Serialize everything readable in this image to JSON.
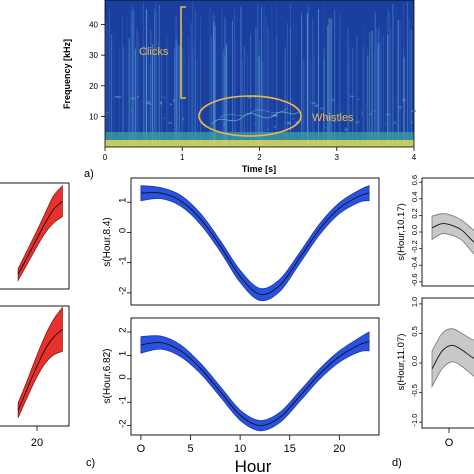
{
  "figure_labels": {
    "a": "a)",
    "c": "c)",
    "d": "d)"
  },
  "colors": {
    "spectro_bg": "#1b3f9e",
    "annotation": "#e8b84a",
    "ribbon_red": "#e8302c",
    "ribbon_blue": "#2a52e0",
    "ribbon_grey": "#c8c8c8",
    "curve": "#111111"
  },
  "spectrogram": {
    "xlabel": "Time [s]",
    "ylabel": "Frequency [kHz]",
    "xticks": [
      "0",
      "1",
      "2",
      "3",
      "4"
    ],
    "yticks": [
      "10",
      "20",
      "30",
      "40"
    ],
    "annotations": {
      "clicks": "Clicks",
      "whistles": "Whistles"
    }
  },
  "panel_c": {
    "xlabel": "Hour",
    "top_ylabel": "s(Hour,8.4)",
    "bottom_ylabel": "s(Hour,6.82)",
    "xticks": [
      "O",
      "5",
      "10",
      "15",
      "20"
    ],
    "top_yticks": [
      "1",
      "0",
      "-1",
      "-2"
    ],
    "bottom_yticks": [
      "2",
      "1",
      "0",
      "-1",
      "-2"
    ]
  },
  "panel_d": {
    "top_ylabel": "s(Hour,10.17)",
    "bottom_ylabel": "s(Hour,11.07)",
    "top_yticks": [
      "0.6",
      "0.4",
      "0.2",
      "0.0",
      "-0.2",
      "-0.4",
      "-0.6"
    ],
    "bottom_yticks": [
      "1.0",
      "0.5",
      "0.0",
      "-0.5",
      "-1.0"
    ],
    "xticks": [
      "O"
    ]
  },
  "panel_b": {
    "xticks": [
      "20"
    ]
  },
  "chart_data": [
    {
      "type": "heatmap",
      "name": "spectrogram",
      "xlabel": "Time [s]",
      "ylabel": "Frequency [kHz]",
      "xlim": [
        0,
        4
      ],
      "ylim": [
        0,
        48
      ],
      "annotations": [
        {
          "text": "Clicks",
          "y_range_khz": [
            17,
            46
          ],
          "x": 1
        },
        {
          "text": "Whistles",
          "x_range_s": [
            1.25,
            2.55
          ],
          "y_range_khz": [
            5,
            13
          ]
        }
      ]
    },
    {
      "type": "area",
      "name": "panel_b_top",
      "xlim": [
        -1,
        24
      ],
      "x": [
        13,
        15,
        17,
        19,
        21,
        23
      ],
      "values": [
        -0.9,
        -0.55,
        -0.2,
        0.15,
        0.45,
        0.62
      ],
      "band_halfwidth": [
        0.12,
        0.14,
        0.16,
        0.2,
        0.28,
        0.32
      ]
    },
    {
      "type": "area",
      "name": "panel_b_bottom",
      "xlim": [
        -1,
        24
      ],
      "x": [
        13,
        15,
        17,
        19,
        21,
        23
      ],
      "values": [
        -1.0,
        -0.6,
        -0.2,
        0.15,
        0.4,
        0.55
      ],
      "band_halfwidth": [
        0.14,
        0.16,
        0.2,
        0.26,
        0.34,
        0.42
      ]
    },
    {
      "type": "area",
      "name": "panel_c_top",
      "ylabel": "s(Hour,8.4)",
      "xlim": [
        -1,
        24
      ],
      "ylim": [
        -2.4,
        1.8
      ],
      "x": [
        0,
        2,
        4,
        6,
        8,
        10,
        12,
        14,
        16,
        18,
        20,
        22,
        23
      ],
      "values": [
        1.3,
        1.3,
        1.05,
        0.45,
        -0.45,
        -1.45,
        -2.05,
        -1.75,
        -0.85,
        0.1,
        0.8,
        1.2,
        1.3
      ],
      "band_halfwidth": [
        0.25,
        0.18,
        0.18,
        0.18,
        0.18,
        0.2,
        0.2,
        0.2,
        0.18,
        0.18,
        0.18,
        0.2,
        0.25
      ]
    },
    {
      "type": "area",
      "name": "panel_c_bottom",
      "ylabel": "s(Hour,6.82)",
      "xlim": [
        -1,
        24
      ],
      "ylim": [
        -2.4,
        2.6
      ],
      "x": [
        0,
        2,
        4,
        6,
        8,
        10,
        12,
        14,
        16,
        18,
        20,
        22,
        23
      ],
      "values": [
        1.45,
        1.55,
        1.2,
        0.45,
        -0.55,
        -1.55,
        -2.0,
        -1.65,
        -0.75,
        0.2,
        0.95,
        1.45,
        1.6
      ],
      "band_halfwidth": [
        0.35,
        0.28,
        0.25,
        0.22,
        0.22,
        0.22,
        0.22,
        0.22,
        0.22,
        0.22,
        0.24,
        0.3,
        0.4
      ]
    },
    {
      "type": "area",
      "name": "panel_d_top",
      "ylabel": "s(Hour,10.17)",
      "xlim": [
        -1,
        24
      ],
      "ylim": [
        -0.65,
        0.65
      ],
      "x": [
        0,
        1,
        2,
        3,
        4,
        5
      ],
      "values": [
        0.05,
        0.1,
        0.08,
        0.02,
        -0.1,
        -0.22
      ],
      "band_halfwidth": [
        0.14,
        0.12,
        0.12,
        0.12,
        0.14,
        0.16
      ]
    },
    {
      "type": "area",
      "name": "panel_d_bottom",
      "ylabel": "s(Hour,11.07)",
      "xlim": [
        -1,
        24
      ],
      "ylim": [
        -1.1,
        1.1
      ],
      "x": [
        0,
        1,
        2,
        3,
        4,
        5
      ],
      "values": [
        -0.1,
        0.2,
        0.3,
        0.22,
        0.1,
        0.02
      ],
      "band_halfwidth": [
        0.3,
        0.3,
        0.28,
        0.28,
        0.3,
        0.35
      ]
    }
  ]
}
